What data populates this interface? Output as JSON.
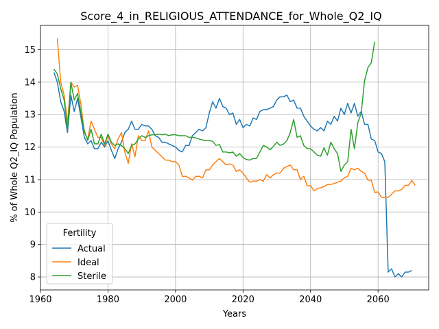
{
  "chart_data": {
    "type": "line",
    "title": "Score_4_in_RELIGIOUS_ATTENDANCE_for_Whole_Q2_IQ",
    "xlabel": "Years",
    "ylabel": "% of Whole Q2_IQ Population",
    "xlim": [
      1960,
      2075
    ],
    "ylim": [
      7.6,
      15.75
    ],
    "xticks": [
      1960,
      1980,
      2000,
      2020,
      2040,
      2060
    ],
    "yticks": [
      8,
      9,
      10,
      11,
      12,
      13,
      14,
      15
    ],
    "grid": true,
    "legend": {
      "title": "Fertility",
      "position": "lower-left"
    },
    "series": [
      {
        "name": "Actual",
        "color": "#1f77b4",
        "points": [
          [
            1964,
            14.3
          ],
          [
            1965,
            14.0
          ],
          [
            1966,
            13.4
          ],
          [
            1967,
            13.1
          ],
          [
            1968,
            12.45
          ],
          [
            1969,
            13.6
          ],
          [
            1970,
            13.1
          ],
          [
            1971,
            13.5
          ],
          [
            1972,
            12.9
          ],
          [
            1973,
            12.3
          ],
          [
            1974,
            12.1
          ],
          [
            1975,
            12.2
          ],
          [
            1976,
            11.95
          ],
          [
            1977,
            11.95
          ],
          [
            1978,
            12.15
          ],
          [
            1979,
            12.0
          ],
          [
            1980,
            12.2
          ],
          [
            1981,
            11.9
          ],
          [
            1982,
            11.65
          ],
          [
            1983,
            11.95
          ],
          [
            1984,
            12.15
          ],
          [
            1985,
            12.45
          ],
          [
            1986,
            12.55
          ],
          [
            1987,
            12.8
          ],
          [
            1988,
            12.55
          ],
          [
            1989,
            12.55
          ],
          [
            1990,
            12.7
          ],
          [
            1991,
            12.65
          ],
          [
            1992,
            12.65
          ],
          [
            1993,
            12.55
          ],
          [
            1994,
            12.35
          ],
          [
            1995,
            12.3
          ],
          [
            1996,
            12.15
          ],
          [
            1997,
            12.15
          ],
          [
            1998,
            12.1
          ],
          [
            1999,
            12.05
          ],
          [
            2000,
            12.0
          ],
          [
            2001,
            11.9
          ],
          [
            2002,
            11.85
          ],
          [
            2003,
            12.05
          ],
          [
            2004,
            12.05
          ],
          [
            2005,
            12.35
          ],
          [
            2006,
            12.45
          ],
          [
            2007,
            12.55
          ],
          [
            2008,
            12.5
          ],
          [
            2009,
            12.6
          ],
          [
            2010,
            13.05
          ],
          [
            2011,
            13.4
          ],
          [
            2012,
            13.2
          ],
          [
            2013,
            13.5
          ],
          [
            2014,
            13.25
          ],
          [
            2015,
            13.2
          ],
          [
            2016,
            13.0
          ],
          [
            2017,
            13.05
          ],
          [
            2018,
            12.7
          ],
          [
            2019,
            12.85
          ],
          [
            2020,
            12.6
          ],
          [
            2021,
            12.7
          ],
          [
            2022,
            12.65
          ],
          [
            2023,
            12.9
          ],
          [
            2024,
            12.85
          ],
          [
            2025,
            13.1
          ],
          [
            2026,
            13.15
          ],
          [
            2027,
            13.15
          ],
          [
            2028,
            13.2
          ],
          [
            2029,
            13.25
          ],
          [
            2030,
            13.45
          ],
          [
            2031,
            13.55
          ],
          [
            2032,
            13.55
          ],
          [
            2033,
            13.6
          ],
          [
            2034,
            13.4
          ],
          [
            2035,
            13.45
          ],
          [
            2036,
            13.2
          ],
          [
            2037,
            13.2
          ],
          [
            2038,
            12.95
          ],
          [
            2039,
            12.8
          ],
          [
            2040,
            12.65
          ],
          [
            2041,
            12.55
          ],
          [
            2042,
            12.5
          ],
          [
            2043,
            12.6
          ],
          [
            2044,
            12.5
          ],
          [
            2045,
            12.8
          ],
          [
            2046,
            12.7
          ],
          [
            2047,
            12.95
          ],
          [
            2048,
            12.8
          ],
          [
            2049,
            13.2
          ],
          [
            2050,
            13.0
          ],
          [
            2051,
            13.35
          ],
          [
            2052,
            13.05
          ],
          [
            2053,
            13.35
          ],
          [
            2054,
            12.95
          ],
          [
            2055,
            13.1
          ],
          [
            2056,
            12.7
          ],
          [
            2057,
            12.7
          ],
          [
            2058,
            12.25
          ],
          [
            2059,
            12.2
          ],
          [
            2060,
            11.85
          ],
          [
            2061,
            11.8
          ],
          [
            2062,
            11.55
          ],
          [
            2063,
            8.15
          ],
          [
            2064,
            8.25
          ],
          [
            2065,
            8.0
          ],
          [
            2066,
            8.1
          ],
          [
            2067,
            8.0
          ],
          [
            2068,
            8.15
          ],
          [
            2069,
            8.15
          ],
          [
            2070,
            8.2
          ]
        ]
      },
      {
        "name": "Ideal",
        "color": "#ff7f0e",
        "points": [
          [
            1965,
            15.35
          ],
          [
            1966,
            14.0
          ],
          [
            1967,
            13.6
          ],
          [
            1968,
            12.75
          ],
          [
            1969,
            14.0
          ],
          [
            1970,
            13.85
          ],
          [
            1971,
            13.9
          ],
          [
            1972,
            13.3
          ],
          [
            1973,
            12.45
          ],
          [
            1974,
            12.25
          ],
          [
            1975,
            12.8
          ],
          [
            1976,
            12.55
          ],
          [
            1977,
            12.3
          ],
          [
            1978,
            12.3
          ],
          [
            1979,
            12.05
          ],
          [
            1980,
            12.35
          ],
          [
            1981,
            12.1
          ],
          [
            1982,
            11.95
          ],
          [
            1983,
            12.25
          ],
          [
            1984,
            12.45
          ],
          [
            1985,
            11.85
          ],
          [
            1986,
            11.5
          ],
          [
            1987,
            12.1
          ],
          [
            1988,
            11.7
          ],
          [
            1989,
            12.35
          ],
          [
            1990,
            12.2
          ],
          [
            1991,
            12.2
          ],
          [
            1992,
            12.5
          ],
          [
            1993,
            12.0
          ],
          [
            1994,
            11.9
          ],
          [
            1995,
            11.8
          ],
          [
            1996,
            11.7
          ],
          [
            1997,
            11.6
          ],
          [
            1998,
            11.6
          ],
          [
            1999,
            11.55
          ],
          [
            2000,
            11.55
          ],
          [
            2001,
            11.45
          ],
          [
            2002,
            11.1
          ],
          [
            2003,
            11.1
          ],
          [
            2004,
            11.05
          ],
          [
            2005,
            10.98
          ],
          [
            2006,
            11.1
          ],
          [
            2007,
            11.1
          ],
          [
            2008,
            11.05
          ],
          [
            2009,
            11.3
          ],
          [
            2010,
            11.3
          ],
          [
            2011,
            11.45
          ],
          [
            2012,
            11.55
          ],
          [
            2013,
            11.65
          ],
          [
            2014,
            11.55
          ],
          [
            2015,
            11.45
          ],
          [
            2016,
            11.48
          ],
          [
            2017,
            11.45
          ],
          [
            2018,
            11.25
          ],
          [
            2019,
            11.3
          ],
          [
            2020,
            11.2
          ],
          [
            2021,
            11.05
          ],
          [
            2022,
            10.92
          ],
          [
            2023,
            10.95
          ],
          [
            2024,
            10.95
          ],
          [
            2025,
            11.0
          ],
          [
            2026,
            10.95
          ],
          [
            2027,
            11.15
          ],
          [
            2028,
            11.05
          ],
          [
            2029,
            11.15
          ],
          [
            2030,
            11.2
          ],
          [
            2031,
            11.2
          ],
          [
            2032,
            11.35
          ],
          [
            2033,
            11.4
          ],
          [
            2034,
            11.45
          ],
          [
            2035,
            11.3
          ],
          [
            2036,
            11.3
          ],
          [
            2037,
            11.0
          ],
          [
            2038,
            11.1
          ],
          [
            2039,
            10.8
          ],
          [
            2040,
            10.82
          ],
          [
            2041,
            10.65
          ],
          [
            2042,
            10.72
          ],
          [
            2043,
            10.75
          ],
          [
            2044,
            10.78
          ],
          [
            2045,
            10.85
          ],
          [
            2046,
            10.85
          ],
          [
            2047,
            10.88
          ],
          [
            2048,
            10.92
          ],
          [
            2049,
            10.95
          ],
          [
            2050,
            11.05
          ],
          [
            2051,
            11.1
          ],
          [
            2052,
            11.35
          ],
          [
            2053,
            11.3
          ],
          [
            2054,
            11.35
          ],
          [
            2055,
            11.25
          ],
          [
            2056,
            11.2
          ],
          [
            2057,
            10.98
          ],
          [
            2058,
            10.98
          ],
          [
            2059,
            10.6
          ],
          [
            2060,
            10.62
          ],
          [
            2061,
            10.45
          ],
          [
            2062,
            10.45
          ],
          [
            2063,
            10.45
          ],
          [
            2064,
            10.55
          ],
          [
            2065,
            10.65
          ],
          [
            2066,
            10.65
          ],
          [
            2067,
            10.7
          ],
          [
            2068,
            10.82
          ],
          [
            2069,
            10.82
          ],
          [
            2070,
            10.97
          ],
          [
            2071,
            10.82
          ]
        ]
      },
      {
        "name": "Sterile",
        "color": "#2ca02c",
        "points": [
          [
            1964,
            14.4
          ],
          [
            1965,
            14.25
          ],
          [
            1966,
            13.8
          ],
          [
            1967,
            13.45
          ],
          [
            1968,
            12.55
          ],
          [
            1969,
            14.0
          ],
          [
            1970,
            13.45
          ],
          [
            1971,
            13.65
          ],
          [
            1972,
            13.05
          ],
          [
            1973,
            12.5
          ],
          [
            1974,
            12.2
          ],
          [
            1975,
            12.55
          ],
          [
            1976,
            12.1
          ],
          [
            1977,
            12.1
          ],
          [
            1978,
            12.4
          ],
          [
            1979,
            12.1
          ],
          [
            1980,
            12.4
          ],
          [
            1981,
            12.15
          ],
          [
            1982,
            12.05
          ],
          [
            1983,
            12.1
          ],
          [
            1984,
            12.05
          ],
          [
            1985,
            11.95
          ],
          [
            1986,
            11.8
          ],
          [
            1987,
            12.05
          ],
          [
            1988,
            12.1
          ],
          [
            1989,
            12.25
          ],
          [
            1990,
            12.35
          ],
          [
            1991,
            12.3
          ],
          [
            1992,
            12.35
          ],
          [
            1993,
            12.38
          ],
          [
            1994,
            12.38
          ],
          [
            1995,
            12.4
          ],
          [
            1996,
            12.38
          ],
          [
            1997,
            12.4
          ],
          [
            1998,
            12.35
          ],
          [
            1999,
            12.38
          ],
          [
            2000,
            12.38
          ],
          [
            2001,
            12.35
          ],
          [
            2002,
            12.35
          ],
          [
            2003,
            12.35
          ],
          [
            2004,
            12.3
          ],
          [
            2005,
            12.3
          ],
          [
            2006,
            12.28
          ],
          [
            2007,
            12.25
          ],
          [
            2008,
            12.22
          ],
          [
            2009,
            12.2
          ],
          [
            2010,
            12.2
          ],
          [
            2011,
            12.18
          ],
          [
            2012,
            12.05
          ],
          [
            2013,
            12.08
          ],
          [
            2014,
            11.85
          ],
          [
            2015,
            11.85
          ],
          [
            2016,
            11.82
          ],
          [
            2017,
            11.85
          ],
          [
            2018,
            11.72
          ],
          [
            2019,
            11.8
          ],
          [
            2020,
            11.68
          ],
          [
            2021,
            11.62
          ],
          [
            2022,
            11.6
          ],
          [
            2023,
            11.65
          ],
          [
            2024,
            11.65
          ],
          [
            2025,
            11.85
          ],
          [
            2026,
            12.05
          ],
          [
            2027,
            12.0
          ],
          [
            2028,
            11.92
          ],
          [
            2029,
            12.02
          ],
          [
            2030,
            12.15
          ],
          [
            2031,
            12.05
          ],
          [
            2032,
            12.1
          ],
          [
            2033,
            12.2
          ],
          [
            2034,
            12.45
          ],
          [
            2035,
            12.85
          ],
          [
            2036,
            12.3
          ],
          [
            2037,
            12.35
          ],
          [
            2038,
            12.05
          ],
          [
            2039,
            11.95
          ],
          [
            2040,
            11.95
          ],
          [
            2041,
            11.85
          ],
          [
            2042,
            11.75
          ],
          [
            2043,
            11.72
          ],
          [
            2044,
            11.98
          ],
          [
            2045,
            11.75
          ],
          [
            2046,
            12.15
          ],
          [
            2047,
            11.95
          ],
          [
            2048,
            11.8
          ],
          [
            2049,
            11.25
          ],
          [
            2050,
            11.45
          ],
          [
            2051,
            11.55
          ],
          [
            2052,
            12.55
          ],
          [
            2053,
            11.95
          ],
          [
            2054,
            12.75
          ],
          [
            2055,
            13.05
          ],
          [
            2056,
            14.05
          ],
          [
            2057,
            14.45
          ],
          [
            2058,
            14.6
          ],
          [
            2059,
            15.25
          ]
        ]
      }
    ]
  }
}
